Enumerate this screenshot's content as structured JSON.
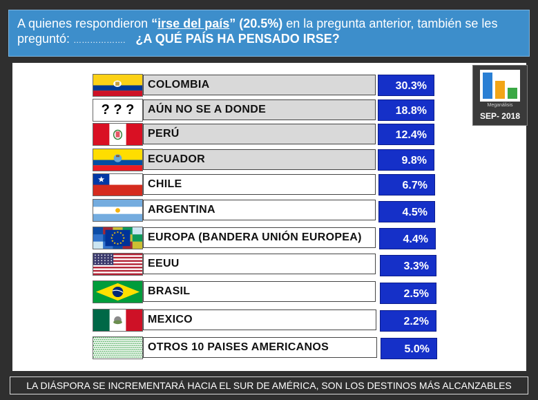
{
  "header": {
    "pre": "A quienes respondieron ",
    "quote_open": "“",
    "highlight": "irse del país",
    "quote_close": "”",
    "percent": " (20.5%)",
    "post": " en la pregunta anterior, también se les preguntó: ",
    "dots": "……………….",
    "question": "¿A QUÉ PAÍS HA PENSADO IRSE?"
  },
  "logo": {
    "brand": "Meganálisis",
    "date": "SEP- 2018",
    "colors": [
      "#2a7fd4",
      "#f2a516",
      "#3aa845"
    ]
  },
  "footer": "LA DIÁSPORA SE INCREMENTARÁ HACIA EL SUR DE AMÉRICA, SON LOS DESTINOS MÁS ALCANZABLES",
  "chart_data": {
    "type": "table",
    "rows": [
      {
        "flag": "colombia-flag",
        "label": "COLOMBIA",
        "value": 30.3,
        "value_text": "30.3%"
      },
      {
        "flag": "question-marks-flag",
        "label": "AÚN NO SE A DONDE",
        "value": 18.8,
        "value_text": "18.8%",
        "flag_text": "? ? ?"
      },
      {
        "flag": "peru-flag",
        "label": "PERÚ",
        "value": 12.4,
        "value_text": "12.4%"
      },
      {
        "flag": "ecuador-flag",
        "label": "ECUADOR",
        "value": 9.8,
        "value_text": "9.8%"
      },
      {
        "flag": "chile-flag",
        "label": "CHILE",
        "value": 6.7,
        "value_text": "6.7%"
      },
      {
        "flag": "argentina-flag",
        "label": "ARGENTINA",
        "value": 4.5,
        "value_text": "4.5%"
      },
      {
        "flag": "europe-flag",
        "label": "EUROPA (BANDERA UNIÓN EUROPEA)",
        "value": 4.4,
        "value_text": "4.4%"
      },
      {
        "flag": "usa-flag",
        "label": "EEUU",
        "value": 3.3,
        "value_text": "3.3%"
      },
      {
        "flag": "brazil-flag",
        "label": "BRASIL",
        "value": 2.5,
        "value_text": "2.5%"
      },
      {
        "flag": "mexico-flag",
        "label": "MEXICO",
        "value": 2.2,
        "value_text": "2.2%"
      },
      {
        "flag": "other-countries-flag",
        "label": "OTROS 10 PAISES AMERICANOS",
        "value": 5.0,
        "value_text": "5.0%"
      }
    ]
  }
}
